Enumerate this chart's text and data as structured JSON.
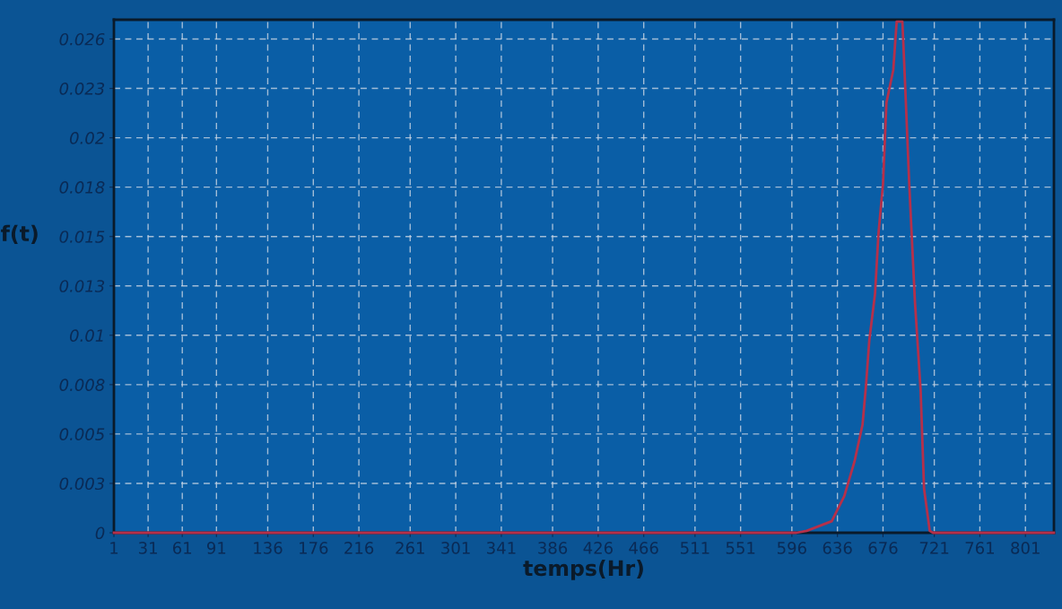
{
  "chart_data": {
    "type": "line",
    "xlabel": "temps(Hr)",
    "ylabel": "f(t)",
    "x": [
      1,
      600,
      609,
      631,
      642,
      651,
      658,
      661,
      664,
      669,
      672,
      676,
      679,
      685,
      688,
      693,
      695,
      699,
      704,
      709,
      712,
      717,
      720,
      826
    ],
    "series": [
      {
        "color": "#b5304a",
        "values": [
          0,
          0,
          0.0001,
          0.0006,
          0.0019,
          0.0037,
          0.0056,
          0.0076,
          0.01,
          0.0124,
          0.0155,
          0.0181,
          0.0223,
          0.024,
          0.0265,
          0.0265,
          0.0238,
          0.0181,
          0.012,
          0.0074,
          0.0023,
          0.0001,
          0,
          0
        ]
      }
    ],
    "xlim": [
      1,
      826
    ],
    "xticks": [
      1,
      31,
      61,
      91,
      136,
      176,
      216,
      261,
      301,
      341,
      386,
      426,
      466,
      511,
      551,
      596,
      636,
      676,
      721,
      761,
      801
    ],
    "ylim": [
      0,
      0.0266
    ],
    "yticks": [
      0,
      {
        "value": 0.00256,
        "label": "0.003"
      },
      {
        "value": 0.00512,
        "label": "0.005"
      },
      {
        "value": 0.00768,
        "label": "0.008"
      },
      {
        "value": 0.01024,
        "label": "0.01"
      },
      {
        "value": 0.0128,
        "label": "0.013"
      },
      {
        "value": 0.01536,
        "label": "0.015"
      },
      {
        "value": 0.01792,
        "label": "0.018"
      },
      {
        "value": 0.02048,
        "label": "0.02"
      },
      {
        "value": 0.02304,
        "label": "0.023"
      },
      {
        "value": 0.0256,
        "label": "0.026"
      }
    ],
    "grid": true,
    "line_style": "solid",
    "marker": "none"
  }
}
